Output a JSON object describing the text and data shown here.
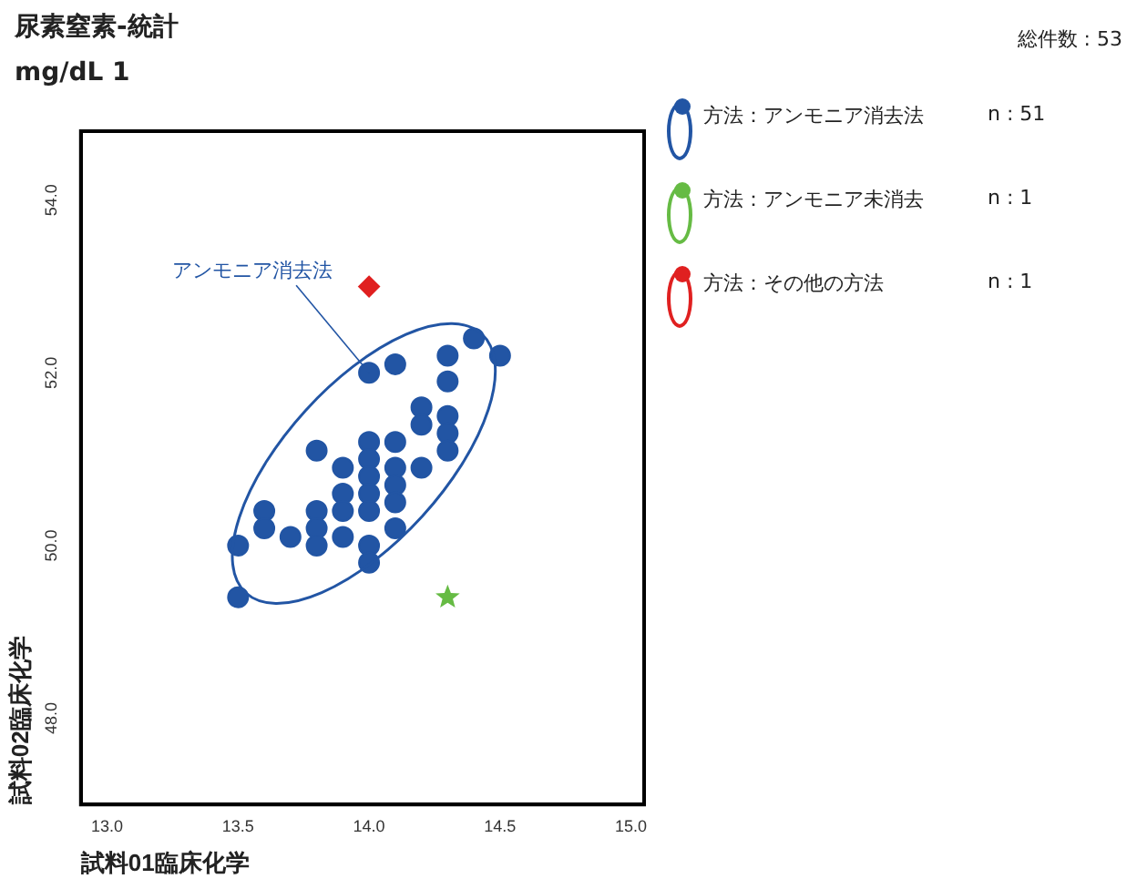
{
  "chart_data": {
    "type": "scatter",
    "title": "尿素窒素-統計",
    "subtitle": "mg/dL  1",
    "xlabel": "試料01臨床化学",
    "ylabel": "試料02臨床化学",
    "xlim": [
      12.9,
      15.05
    ],
    "xticks": [
      {
        "value": 13,
        "label": "13.0"
      },
      {
        "value": 13.5,
        "label": "13.5"
      },
      {
        "value": 14,
        "label": "14.0"
      },
      {
        "value": 14.5,
        "label": "14.5"
      },
      {
        "value": 15,
        "label": "15.0"
      }
    ],
    "ylim": [
      47,
      54.8
    ],
    "yticks": [
      {
        "value": 48,
        "label": "48.0"
      },
      {
        "value": 50,
        "label": "50.0"
      },
      {
        "value": 52,
        "label": "52.0"
      },
      {
        "value": 54,
        "label": "54.0"
      }
    ],
    "grid": false,
    "legend": "right",
    "series": [
      {
        "name": "方法：アンモニア消去法",
        "color": "#2255a4",
        "marker": "circle",
        "x": [
          13.5,
          13.5,
          13.6,
          13.6,
          13.7,
          13.8,
          13.8,
          13.8,
          13.8,
          13.9,
          13.9,
          13.9,
          13.9,
          14.0,
          14.0,
          14.0,
          14.0,
          14.0,
          14.0,
          14.0,
          14.0,
          14.1,
          14.1,
          14.1,
          14.1,
          14.1,
          14.1,
          14.2,
          14.2,
          14.2,
          14.3,
          14.3,
          14.3,
          14.3,
          14.3,
          14.4,
          14.5
        ],
        "values": [
          50.0,
          49.4,
          50.4,
          50.2,
          50.1,
          51.1,
          50.4,
          50.2,
          50.0,
          50.9,
          50.6,
          50.4,
          50.1,
          52.0,
          51.2,
          51.0,
          50.8,
          50.6,
          50.4,
          50.0,
          49.8,
          52.1,
          51.2,
          50.9,
          50.7,
          50.5,
          50.2,
          51.6,
          51.4,
          50.9,
          52.2,
          51.9,
          51.5,
          51.3,
          51.1,
          52.4,
          52.2
        ]
      },
      {
        "name": "方法：アンモニア未消去",
        "color": "#66bb44",
        "marker": "star",
        "x": [
          14.3
        ],
        "values": [
          49.4
        ]
      },
      {
        "name": "方法：その他の方法",
        "color": "#e02020",
        "marker": "diamond",
        "x": [
          14.0
        ],
        "values": [
          53.0
        ]
      }
    ],
    "annotations": [
      "n : 51",
      "n : 1",
      "n : 1",
      "総件数 : 53",
      {
        "text": "アンモニア消去法",
        "x": 14.0,
        "y": 52.0
      }
    ]
  }
}
